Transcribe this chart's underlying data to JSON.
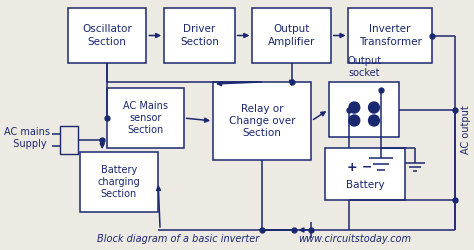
{
  "bg_color": "#ede9e3",
  "line_color": "#1a2870",
  "box_color": "#ffffff",
  "title_left": "Block diagram of a basic inverter",
  "title_right": "www.circuitstoday.com",
  "ac_output_label": "AC output",
  "ac_mains_label": "AC mains\n  Supply"
}
